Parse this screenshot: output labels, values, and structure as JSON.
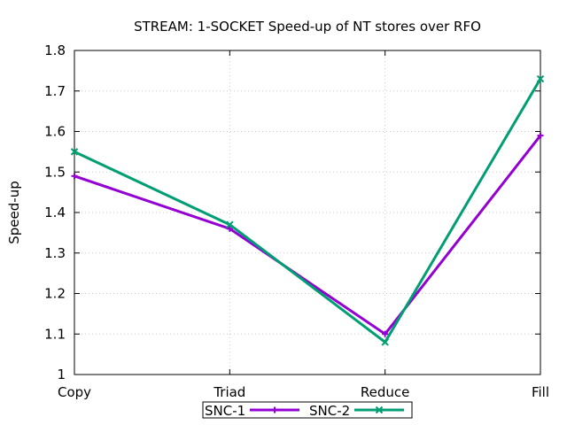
{
  "chart_data": {
    "type": "line",
    "title": "STREAM: 1-SOCKET Speed-up of NT stores over RFO",
    "xlabel": "",
    "ylabel": "Speed-up",
    "categories": [
      "Copy",
      "Triad",
      "Reduce",
      "Fill"
    ],
    "ylim": [
      1,
      1.8
    ],
    "yticks": [
      "1",
      "1.1",
      "1.2",
      "1.3",
      "1.4",
      "1.5",
      "1.6",
      "1.7",
      "1.8"
    ],
    "grid": true,
    "legend_position": "bottom-center",
    "series": [
      {
        "name": "SNC-1",
        "color": "#9400d3",
        "marker": "plus",
        "values": [
          1.49,
          1.36,
          1.1,
          1.59
        ]
      },
      {
        "name": "SNC-2",
        "color": "#009e73",
        "marker": "cross",
        "values": [
          1.55,
          1.37,
          1.08,
          1.73
        ]
      }
    ]
  }
}
